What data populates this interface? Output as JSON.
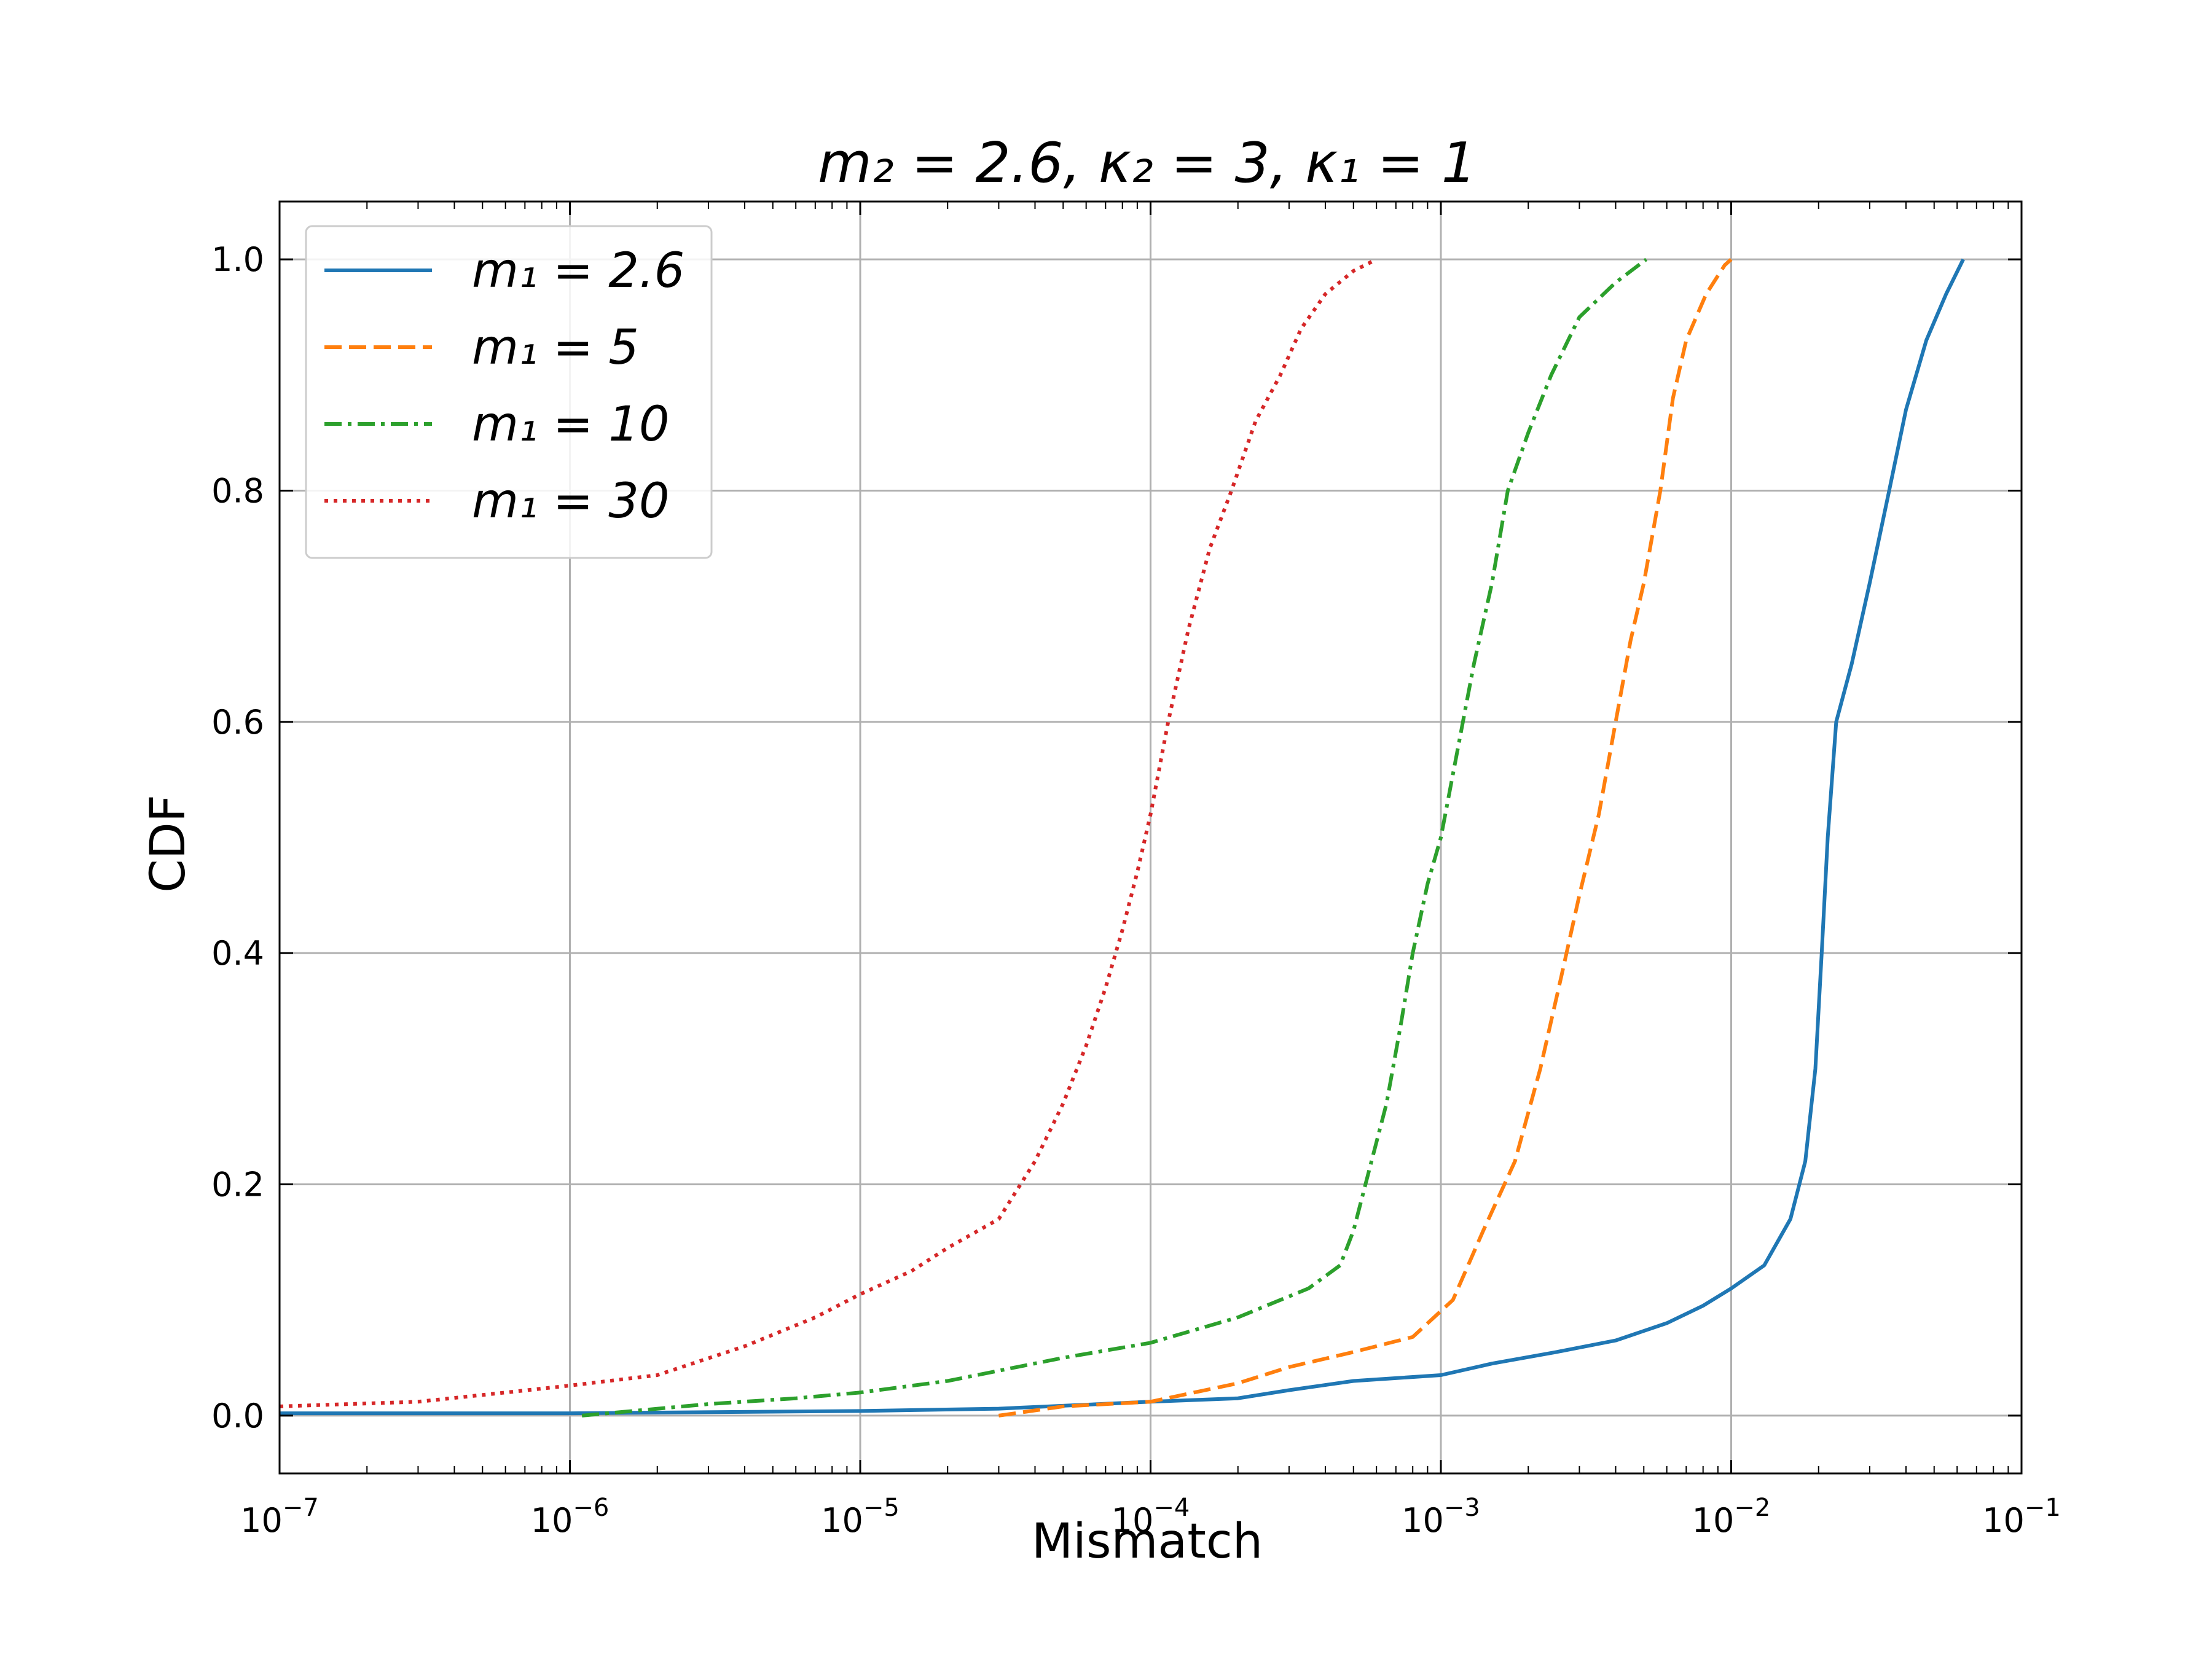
{
  "chart_data": {
    "type": "line",
    "title": "m₂ = 2.6, κ₂ = 3, κ₁ = 1",
    "xlabel": "Mismatch",
    "ylabel": "CDF",
    "xscale": "log",
    "xlim": [
      1e-07,
      0.1
    ],
    "ylim": [
      -0.05,
      1.05
    ],
    "grid": true,
    "legend_position": "upper left",
    "xticks": [
      {
        "value": 1e-07,
        "base": "10",
        "exp": "−7"
      },
      {
        "value": 1e-06,
        "base": "10",
        "exp": "−6"
      },
      {
        "value": 1e-05,
        "base": "10",
        "exp": "−5"
      },
      {
        "value": 0.0001,
        "base": "10",
        "exp": "−4"
      },
      {
        "value": 0.001,
        "base": "10",
        "exp": "−3"
      },
      {
        "value": 0.01,
        "base": "10",
        "exp": "−2"
      },
      {
        "value": 0.1,
        "base": "10",
        "exp": "−1"
      }
    ],
    "yticks": [
      {
        "value": 0.0,
        "label": "0.0"
      },
      {
        "value": 0.2,
        "label": "0.2"
      },
      {
        "value": 0.4,
        "label": "0.4"
      },
      {
        "value": 0.6,
        "label": "0.6"
      },
      {
        "value": 0.8,
        "label": "0.8"
      },
      {
        "value": 1.0,
        "label": "1.0"
      }
    ],
    "series": [
      {
        "name": "m₁ = 2.6",
        "color": "#1f77b4",
        "dash": "solid",
        "points": [
          [
            1e-07,
            0.002
          ],
          [
            1e-06,
            0.002
          ],
          [
            1e-05,
            0.004
          ],
          [
            3e-05,
            0.006
          ],
          [
            0.0001,
            0.012
          ],
          [
            0.0002,
            0.015
          ],
          [
            0.0003,
            0.022
          ],
          [
            0.0005,
            0.03
          ],
          [
            0.001,
            0.035
          ],
          [
            0.0015,
            0.045
          ],
          [
            0.0025,
            0.055
          ],
          [
            0.004,
            0.065
          ],
          [
            0.006,
            0.08
          ],
          [
            0.008,
            0.095
          ],
          [
            0.01,
            0.11
          ],
          [
            0.013,
            0.13
          ],
          [
            0.016,
            0.17
          ],
          [
            0.018,
            0.22
          ],
          [
            0.0195,
            0.3
          ],
          [
            0.0205,
            0.4
          ],
          [
            0.0215,
            0.5
          ],
          [
            0.023,
            0.6
          ],
          [
            0.026,
            0.65
          ],
          [
            0.03,
            0.72
          ],
          [
            0.035,
            0.8
          ],
          [
            0.04,
            0.87
          ],
          [
            0.047,
            0.93
          ],
          [
            0.055,
            0.97
          ],
          [
            0.063,
            1.0
          ]
        ]
      },
      {
        "name": "m₁ = 5",
        "color": "#ff7f0e",
        "dash": "dashed",
        "points": [
          [
            3e-05,
            0.0
          ],
          [
            5e-05,
            0.008
          ],
          [
            0.0001,
            0.012
          ],
          [
            0.0002,
            0.028
          ],
          [
            0.0003,
            0.042
          ],
          [
            0.0005,
            0.055
          ],
          [
            0.0008,
            0.068
          ],
          [
            0.0011,
            0.1
          ],
          [
            0.0014,
            0.16
          ],
          [
            0.0018,
            0.22
          ],
          [
            0.0022,
            0.3
          ],
          [
            0.0026,
            0.38
          ],
          [
            0.003,
            0.45
          ],
          [
            0.0035,
            0.52
          ],
          [
            0.004,
            0.6
          ],
          [
            0.0045,
            0.67
          ],
          [
            0.005,
            0.72
          ],
          [
            0.0057,
            0.8
          ],
          [
            0.0063,
            0.88
          ],
          [
            0.007,
            0.93
          ],
          [
            0.0082,
            0.97
          ],
          [
            0.0095,
            0.995
          ],
          [
            0.01,
            1.0
          ]
        ]
      },
      {
        "name": "m₁ = 10",
        "color": "#2ca02c",
        "dash": "dashdot",
        "points": [
          [
            1.1e-06,
            0.0
          ],
          [
            3e-06,
            0.01
          ],
          [
            6e-06,
            0.015
          ],
          [
            1e-05,
            0.02
          ],
          [
            2e-05,
            0.03
          ],
          [
            5e-05,
            0.05
          ],
          [
            0.0001,
            0.063
          ],
          [
            0.0002,
            0.085
          ],
          [
            0.00035,
            0.11
          ],
          [
            0.00045,
            0.13
          ],
          [
            0.0005,
            0.16
          ],
          [
            0.00055,
            0.2
          ],
          [
            0.00065,
            0.27
          ],
          [
            0.00073,
            0.34
          ],
          [
            0.0008,
            0.4
          ],
          [
            0.0009,
            0.46
          ],
          [
            0.001,
            0.5
          ],
          [
            0.00115,
            0.58
          ],
          [
            0.0013,
            0.65
          ],
          [
            0.0015,
            0.72
          ],
          [
            0.0017,
            0.8
          ],
          [
            0.002,
            0.85
          ],
          [
            0.0024,
            0.9
          ],
          [
            0.003,
            0.95
          ],
          [
            0.004,
            0.98
          ],
          [
            0.0051,
            1.0
          ]
        ]
      },
      {
        "name": "m₁ = 30",
        "color": "#d62728",
        "dash": "dotted",
        "points": [
          [
            1e-07,
            0.008
          ],
          [
            3e-07,
            0.012
          ],
          [
            6e-07,
            0.02
          ],
          [
            1e-06,
            0.026
          ],
          [
            2e-06,
            0.035
          ],
          [
            4e-06,
            0.06
          ],
          [
            7e-06,
            0.085
          ],
          [
            1e-05,
            0.105
          ],
          [
            1.5e-05,
            0.125
          ],
          [
            2e-05,
            0.145
          ],
          [
            3e-05,
            0.17
          ],
          [
            4e-05,
            0.22
          ],
          [
            5e-05,
            0.27
          ],
          [
            6e-05,
            0.32
          ],
          [
            7e-05,
            0.37
          ],
          [
            8e-05,
            0.42
          ],
          [
            9e-05,
            0.47
          ],
          [
            0.0001,
            0.52
          ],
          [
            0.000115,
            0.6
          ],
          [
            0.000135,
            0.68
          ],
          [
            0.00016,
            0.75
          ],
          [
            0.00019,
            0.8
          ],
          [
            0.00023,
            0.86
          ],
          [
            0.00028,
            0.9
          ],
          [
            0.00033,
            0.94
          ],
          [
            0.0004,
            0.97
          ],
          [
            0.0005,
            0.99
          ],
          [
            0.0006,
            1.0
          ]
        ]
      }
    ]
  }
}
